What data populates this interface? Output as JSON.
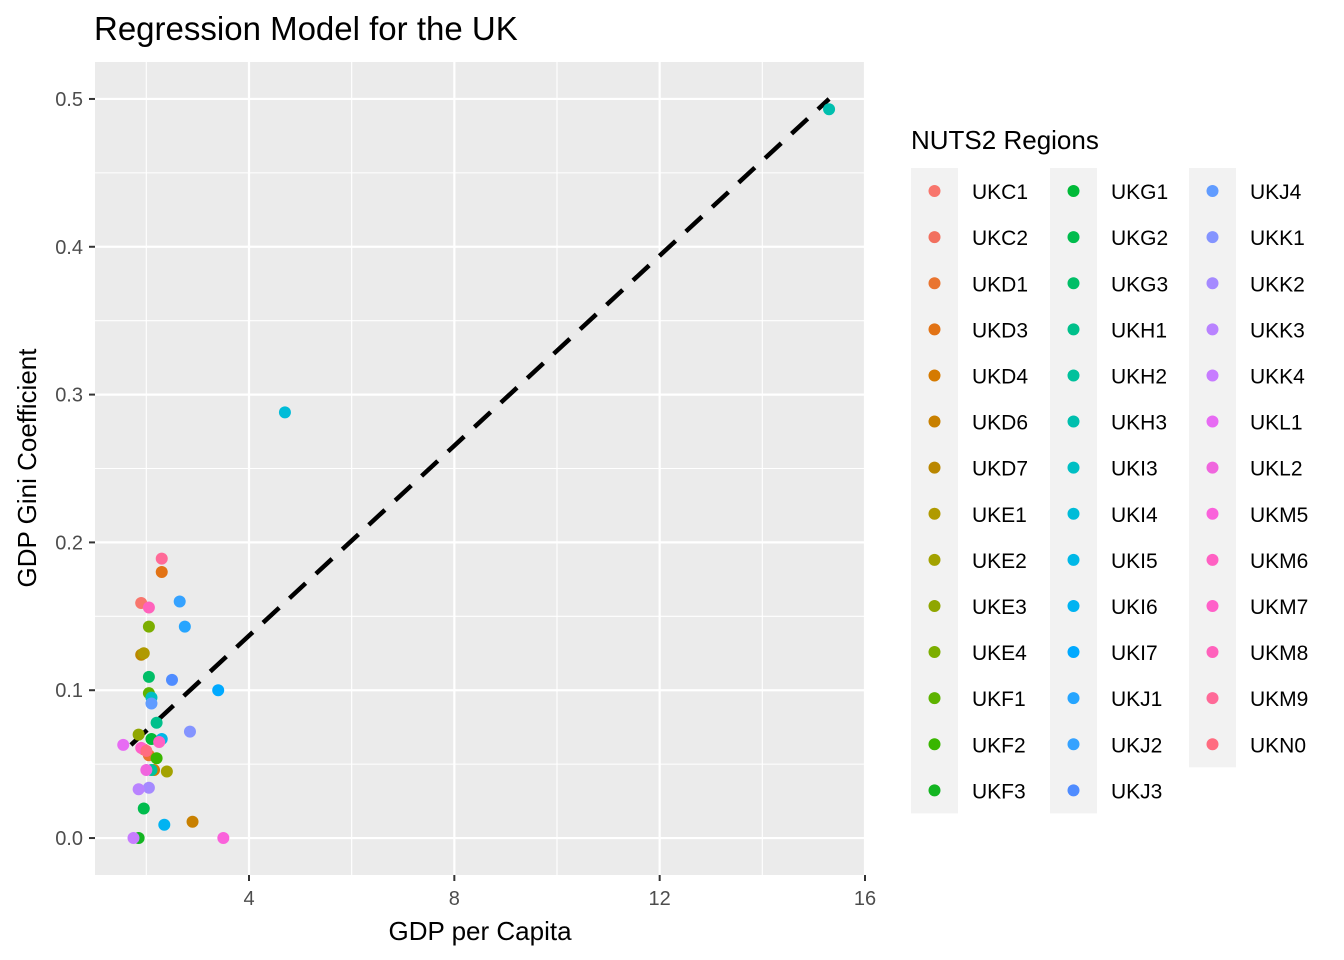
{
  "chart_data": {
    "type": "scatter",
    "title": "Regression Model for the UK",
    "xlabel": "GDP per Capita",
    "ylabel": "GDP Gini Coefficient",
    "xlim": [
      1.0,
      16.0
    ],
    "ylim": [
      -0.025,
      0.525
    ],
    "x_ticks": [
      4,
      8,
      12,
      16
    ],
    "x_tick_labels": [
      "4",
      "8",
      "12",
      "16"
    ],
    "y_ticks": [
      0.0,
      0.1,
      0.2,
      0.3,
      0.4,
      0.5
    ],
    "y_tick_labels": [
      "0.0",
      "0.1",
      "0.2",
      "0.3",
      "0.4",
      "0.5"
    ],
    "grid": true,
    "legend_title": "NUTS2 Regions",
    "legend_position": "right",
    "regression_line": {
      "style": "dashed",
      "color": "#000000",
      "x": [
        1.7,
        15.3
      ],
      "y": [
        0.063,
        0.5
      ]
    },
    "series": [
      {
        "name": "UKC1",
        "color": "#F8766D",
        "x": [
          1.9
        ],
        "y": [
          0.159
        ]
      },
      {
        "name": "UKC2",
        "color": "#F2705F",
        "x": [
          1.95
        ],
        "y": [
          0.06
        ]
      },
      {
        "name": "UKD1",
        "color": "#E9742F",
        "x": [
          2.05
        ],
        "y": [
          0.056
        ]
      },
      {
        "name": "UKD3",
        "color": "#E27315",
        "x": [
          2.3
        ],
        "y": [
          0.18
        ]
      },
      {
        "name": "UKD4",
        "color": "#D57A00",
        "x": [
          2.15
        ],
        "y": [
          0.046
        ]
      },
      {
        "name": "UKD6",
        "color": "#C88000",
        "x": [
          2.9
        ],
        "y": [
          0.011
        ]
      },
      {
        "name": "UKD7",
        "color": "#BA8700",
        "x": [
          1.9
        ],
        "y": [
          0.124
        ]
      },
      {
        "name": "UKE1",
        "color": "#B09A00",
        "x": [
          1.95
        ],
        "y": [
          0.125
        ]
      },
      {
        "name": "UKE2",
        "color": "#A3A200",
        "x": [
          2.4
        ],
        "y": [
          0.045
        ]
      },
      {
        "name": "UKE3",
        "color": "#8FA600",
        "x": [
          1.85
        ],
        "y": [
          0.07
        ]
      },
      {
        "name": "UKE4",
        "color": "#7CAE00",
        "x": [
          2.05
        ],
        "y": [
          0.143
        ]
      },
      {
        "name": "UKF1",
        "color": "#5EB300",
        "x": [
          2.05
        ],
        "y": [
          0.098
        ]
      },
      {
        "name": "UKF2",
        "color": "#39B600",
        "x": [
          2.2
        ],
        "y": [
          0.054
        ]
      },
      {
        "name": "UKF3",
        "color": "#13B521",
        "x": [
          1.85
        ],
        "y": [
          0.0
        ]
      },
      {
        "name": "UKG1",
        "color": "#00BA38",
        "x": [
          2.1
        ],
        "y": [
          0.067
        ]
      },
      {
        "name": "UKG2",
        "color": "#00BC4D",
        "x": [
          1.95
        ],
        "y": [
          0.02
        ]
      },
      {
        "name": "UKG3",
        "color": "#00BE67",
        "x": [
          2.05
        ],
        "y": [
          0.109
        ]
      },
      {
        "name": "UKH1",
        "color": "#00C08B",
        "x": [
          2.2
        ],
        "y": [
          0.078
        ]
      },
      {
        "name": "UKH2",
        "color": "#00C19C",
        "x": [
          2.1
        ],
        "y": [
          0.046
        ]
      },
      {
        "name": "UKH3",
        "color": "#00BFAE",
        "x": [
          15.3
        ],
        "y": [
          0.493
        ]
      },
      {
        "name": "UKI3",
        "color": "#00BFC4",
        "x": [
          2.1
        ],
        "y": [
          0.095
        ]
      },
      {
        "name": "UKI4",
        "color": "#00BCD8",
        "x": [
          4.7
        ],
        "y": [
          0.288
        ]
      },
      {
        "name": "UKI5",
        "color": "#00B8E7",
        "x": [
          2.3
        ],
        "y": [
          0.067
        ]
      },
      {
        "name": "UKI6",
        "color": "#00B3F2",
        "x": [
          2.35
        ],
        "y": [
          0.009
        ]
      },
      {
        "name": "UKI7",
        "color": "#00A9FF",
        "x": [
          3.4
        ],
        "y": [
          0.1
        ]
      },
      {
        "name": "UKJ1",
        "color": "#26A5FF",
        "x": [
          2.75
        ],
        "y": [
          0.143
        ]
      },
      {
        "name": "UKJ2",
        "color": "#35A2FF",
        "x": [
          2.65
        ],
        "y": [
          0.16
        ]
      },
      {
        "name": "UKJ3",
        "color": "#4F8CFF",
        "x": [
          2.5
        ],
        "y": [
          0.107
        ]
      },
      {
        "name": "UKJ4",
        "color": "#619CFF",
        "x": [
          2.1
        ],
        "y": [
          0.091
        ]
      },
      {
        "name": "UKK1",
        "color": "#8494FF",
        "x": [
          2.85
        ],
        "y": [
          0.072
        ]
      },
      {
        "name": "UKK2",
        "color": "#A58AFF",
        "x": [
          2.05
        ],
        "y": [
          0.034
        ]
      },
      {
        "name": "UKK3",
        "color": "#B983FF",
        "x": [
          1.85
        ],
        "y": [
          0.033
        ]
      },
      {
        "name": "UKK4",
        "color": "#C77CFF",
        "x": [
          1.75
        ],
        "y": [
          0.0
        ]
      },
      {
        "name": "UKL1",
        "color": "#E76BF3",
        "x": [
          1.55
        ],
        "y": [
          0.063
        ]
      },
      {
        "name": "UKL2",
        "color": "#F066DE",
        "x": [
          2.0
        ],
        "y": [
          0.046
        ]
      },
      {
        "name": "UKM5",
        "color": "#FA62DB",
        "x": [
          3.5
        ],
        "y": [
          0.0
        ]
      },
      {
        "name": "UKM6",
        "color": "#FF61C3",
        "x": [
          2.25
        ],
        "y": [
          0.065
        ]
      },
      {
        "name": "UKM7",
        "color": "#FF61C9",
        "x": [
          1.9
        ],
        "y": [
          0.061
        ]
      },
      {
        "name": "UKM8",
        "color": "#FF62BC",
        "x": [
          2.05
        ],
        "y": [
          0.156
        ]
      },
      {
        "name": "UKM9",
        "color": "#FF6A98",
        "x": [
          2.3
        ],
        "y": [
          0.189
        ]
      },
      {
        "name": "UKN0",
        "color": "#FF6C80",
        "x": [
          2.0
        ],
        "y": [
          0.059
        ]
      }
    ]
  }
}
